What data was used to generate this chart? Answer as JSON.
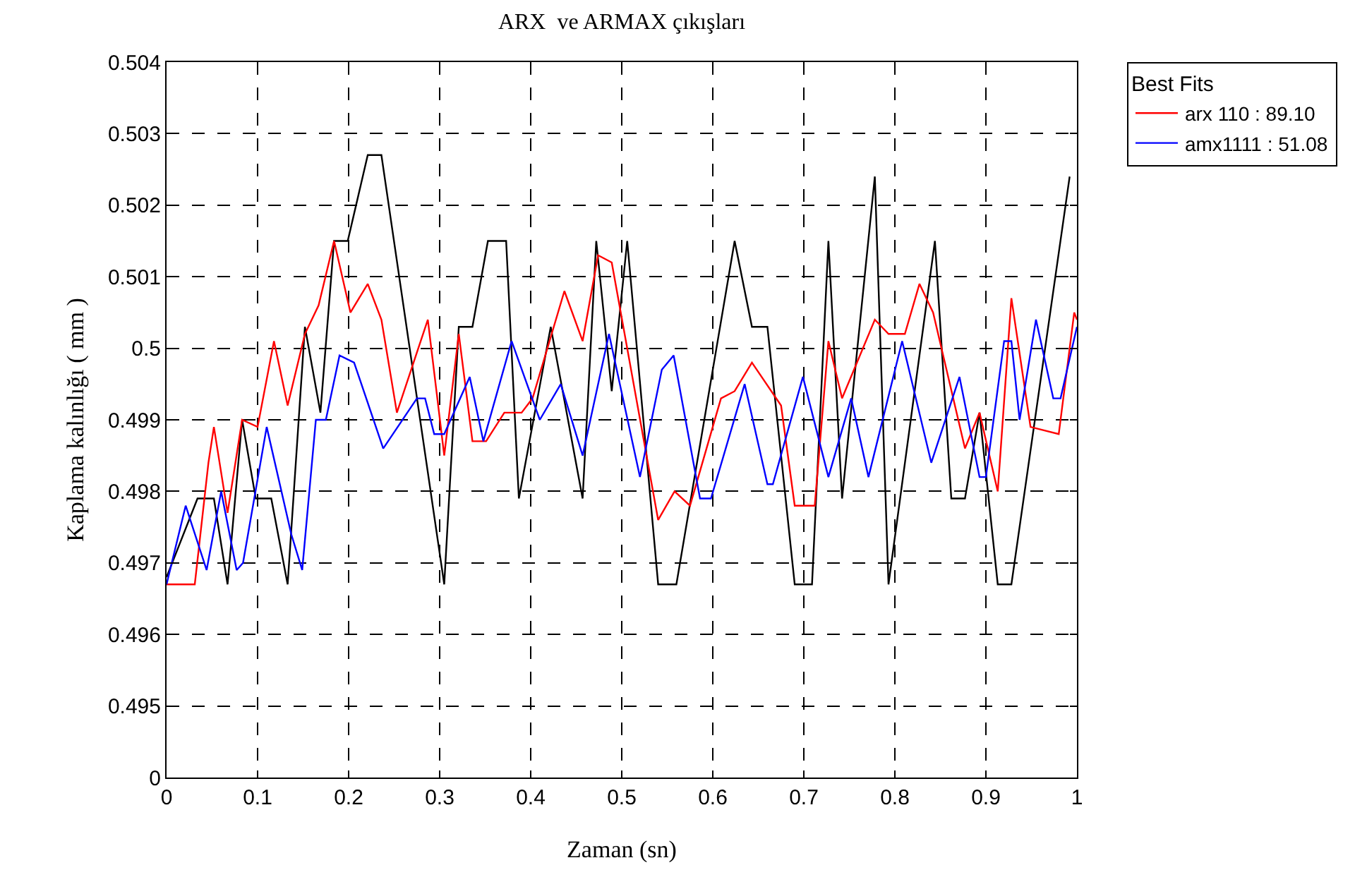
{
  "chart_data": {
    "type": "line",
    "title": "ARX  ve ARMAX çıkışları",
    "xlabel": "Zaman (sn)",
    "ylabel": "Kaplama kalınlığı ( mm )",
    "legend_title": "Best Fits",
    "legend": "right",
    "grid": true,
    "line_style": "solid",
    "marker": "none",
    "xlim": [
      0,
      1
    ],
    "xticks": [
      0,
      0.1,
      0.2,
      0.3,
      0.4,
      0.5,
      0.6,
      0.7,
      0.8,
      0.9,
      1
    ],
    "ylim": [
      0.494,
      0.504
    ],
    "yticks": [
      {
        "value": 0.494,
        "label": "0"
      },
      0.495,
      0.496,
      0.497,
      0.498,
      0.499,
      0.5,
      0.501,
      0.502,
      0.503,
      0.504
    ],
    "series": [
      {
        "color": "#000000",
        "x": [
          0,
          0.034,
          0.052,
          0.067,
          0.083,
          0.098,
          0.115,
          0.133,
          0.152,
          0.169,
          0.184,
          0.199,
          0.221,
          0.236,
          0.305,
          0.321,
          0.336,
          0.353,
          0.373,
          0.387,
          0.422,
          0.457,
          0.472,
          0.489,
          0.506,
          0.54,
          0.56,
          0.624,
          0.643,
          0.66,
          0.69,
          0.709,
          0.727,
          0.742,
          0.778,
          0.793,
          0.844,
          0.862,
          0.877,
          0.893,
          0.913,
          0.928,
          0.992
        ],
        "values": [
          0.4968,
          0.4979,
          0.4979,
          0.4967,
          0.499,
          0.4979,
          0.4979,
          0.4967,
          0.5003,
          0.4991,
          0.5015,
          0.5015,
          0.5027,
          0.5027,
          0.4967,
          0.5003,
          0.5003,
          0.5015,
          0.5015,
          0.4979,
          0.5003,
          0.4979,
          0.5015,
          0.4994,
          0.5015,
          0.4967,
          0.4967,
          0.5015,
          0.5003,
          0.5003,
          0.4967,
          0.4967,
          0.5015,
          0.4979,
          0.5024,
          0.4967,
          0.5015,
          0.4979,
          0.4979,
          0.4991,
          0.4967,
          0.4967,
          0.5024
        ]
      },
      {
        "name": "arx 110 : 89.10",
        "color": "#ff0000",
        "x": [
          0,
          0.031,
          0.046,
          0.052,
          0.067,
          0.083,
          0.1,
          0.118,
          0.133,
          0.152,
          0.167,
          0.184,
          0.202,
          0.221,
          0.236,
          0.253,
          0.287,
          0.305,
          0.321,
          0.336,
          0.351,
          0.371,
          0.39,
          0.402,
          0.437,
          0.457,
          0.474,
          0.489,
          0.54,
          0.558,
          0.575,
          0.609,
          0.624,
          0.643,
          0.675,
          0.69,
          0.712,
          0.727,
          0.742,
          0.778,
          0.793,
          0.811,
          0.827,
          0.842,
          0.877,
          0.893,
          0.913,
          0.928,
          0.949,
          0.98,
          0.997,
          1
        ],
        "values": [
          0.4967,
          0.4967,
          0.4984,
          0.4989,
          0.4977,
          0.499,
          0.4989,
          0.5001,
          0.4992,
          0.5002,
          0.5006,
          0.5015,
          0.5005,
          0.5009,
          0.5004,
          0.4991,
          0.5004,
          0.4985,
          0.5002,
          0.4987,
          0.4987,
          0.4991,
          0.4991,
          0.4993,
          0.5008,
          0.5001,
          0.5013,
          0.5012,
          0.4976,
          0.498,
          0.4978,
          0.4993,
          0.4994,
          0.4998,
          0.4992,
          0.4978,
          0.4978,
          0.5001,
          0.4993,
          0.5004,
          0.5002,
          0.5002,
          0.5009,
          0.5005,
          0.4986,
          0.4991,
          0.498,
          0.5007,
          0.4989,
          0.4988,
          0.5005,
          0.5004
        ]
      },
      {
        "name": "amx1111 : 51.08",
        "color": "#0000ff",
        "x": [
          0,
          0.021,
          0.044,
          0.06,
          0.077,
          0.084,
          0.11,
          0.137,
          0.149,
          0.164,
          0.175,
          0.19,
          0.206,
          0.238,
          0.275,
          0.284,
          0.294,
          0.305,
          0.333,
          0.348,
          0.379,
          0.41,
          0.433,
          0.457,
          0.486,
          0.52,
          0.544,
          0.557,
          0.586,
          0.598,
          0.635,
          0.66,
          0.666,
          0.699,
          0.727,
          0.752,
          0.771,
          0.808,
          0.84,
          0.871,
          0.893,
          0.9,
          0.92,
          0.928,
          0.937,
          0.955,
          0.974,
          0.982,
          1
        ],
        "values": [
          0.4967,
          0.4978,
          0.4969,
          0.498,
          0.4969,
          0.497,
          0.4989,
          0.4974,
          0.4969,
          0.499,
          0.499,
          0.4999,
          0.4998,
          0.4986,
          0.4993,
          0.4993,
          0.4988,
          0.4988,
          0.4996,
          0.4987,
          0.5001,
          0.499,
          0.4995,
          0.4985,
          0.5002,
          0.4982,
          0.4997,
          0.4999,
          0.4979,
          0.4979,
          0.4995,
          0.4981,
          0.4981,
          0.4996,
          0.4982,
          0.4993,
          0.4982,
          0.5001,
          0.4984,
          0.4996,
          0.4982,
          0.4982,
          0.5001,
          0.5001,
          0.499,
          0.5004,
          0.4993,
          0.4993,
          0.5003
        ]
      }
    ]
  }
}
